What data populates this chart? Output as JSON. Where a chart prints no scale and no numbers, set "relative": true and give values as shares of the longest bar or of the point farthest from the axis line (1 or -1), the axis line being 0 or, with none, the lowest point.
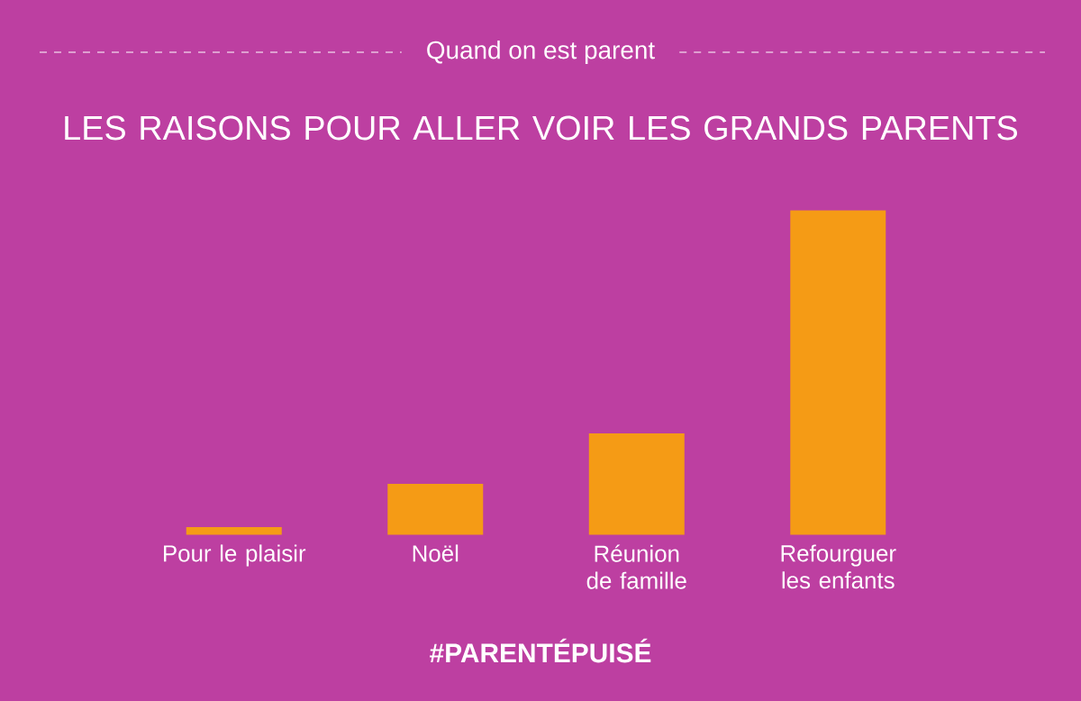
{
  "chart_data": {
    "type": "bar",
    "subtitle": "Quand on est parent",
    "title": "LES RAISONS POUR ALLER VOIR LES GRANDS PARENTS",
    "categories": [
      "Pour le plaisir",
      "Noël",
      "Réunion de famille",
      "Refourguer les enfants"
    ],
    "values": [
      0.023,
      0.157,
      0.312,
      1
    ],
    "color": "#f59b15",
    "relative": true,
    "annotations": [
      "#PARENTÉPUISÉ"
    ]
  }
}
